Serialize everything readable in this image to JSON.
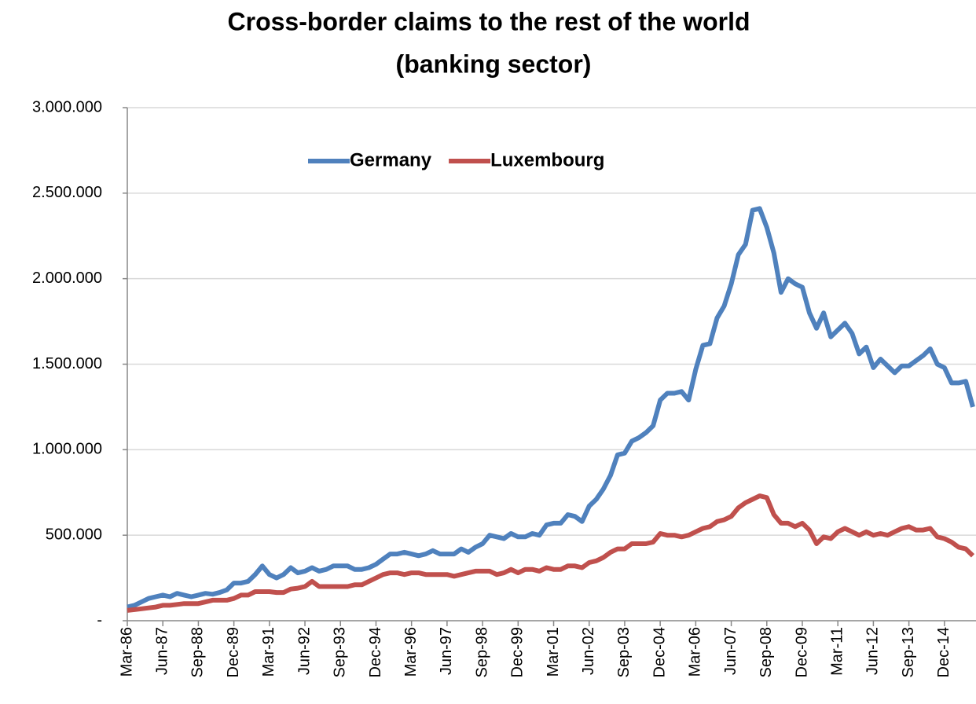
{
  "chart_data": {
    "type": "line",
    "title": [
      "Cross-border claims to the rest of the world",
      "(banking sector)"
    ],
    "categories": [
      "Mar-86",
      null,
      null,
      null,
      null,
      "Jun-87",
      null,
      null,
      null,
      null,
      "Sep-88",
      null,
      null,
      null,
      null,
      "Dec-89",
      null,
      null,
      null,
      null,
      "Mar-91",
      null,
      null,
      null,
      null,
      "Jun-92",
      null,
      null,
      null,
      null,
      "Sep-93",
      null,
      null,
      null,
      null,
      "Dec-94",
      null,
      null,
      null,
      null,
      "Mar-96",
      null,
      null,
      null,
      null,
      "Jun-97",
      null,
      null,
      null,
      null,
      "Sep-98",
      null,
      null,
      null,
      null,
      "Dec-99",
      null,
      null,
      null,
      null,
      "Mar-01",
      null,
      null,
      null,
      null,
      "Jun-02",
      null,
      null,
      null,
      null,
      "Sep-03",
      null,
      null,
      null,
      null,
      "Dec-04",
      null,
      null,
      null,
      null,
      "Mar-06",
      null,
      null,
      null,
      null,
      "Jun-07",
      null,
      null,
      null,
      null,
      "Sep-08",
      null,
      null,
      null,
      null,
      "Dec-09",
      null,
      null,
      null,
      null,
      "Mar-11",
      null,
      null,
      null,
      null,
      "Jun-12",
      null,
      null,
      null,
      null,
      "Sep-13",
      null,
      null,
      null,
      null,
      "Dec-14",
      null,
      null,
      null,
      null
    ],
    "series": [
      {
        "name": "Germany",
        "color": "#4f81bd",
        "values": [
          80000,
          90000,
          110000,
          130000,
          140000,
          150000,
          140000,
          160000,
          150000,
          140000,
          150000,
          160000,
          155000,
          165000,
          180000,
          220000,
          220000,
          230000,
          270000,
          320000,
          270000,
          250000,
          270000,
          310000,
          280000,
          290000,
          310000,
          290000,
          300000,
          320000,
          320000,
          320000,
          300000,
          300000,
          310000,
          330000,
          360000,
          390000,
          390000,
          400000,
          390000,
          380000,
          390000,
          410000,
          390000,
          390000,
          390000,
          420000,
          400000,
          430000,
          450000,
          500000,
          490000,
          480000,
          510000,
          490000,
          490000,
          510000,
          500000,
          560000,
          570000,
          570000,
          620000,
          610000,
          580000,
          670000,
          710000,
          770000,
          850000,
          970000,
          980000,
          1050000,
          1070000,
          1100000,
          1140000,
          1290000,
          1330000,
          1330000,
          1340000,
          1290000,
          1470000,
          1610000,
          1620000,
          1770000,
          1840000,
          1970000,
          2140000,
          2200000,
          2400000,
          2410000,
          2300000,
          2150000,
          1920000,
          2000000,
          1970000,
          1950000,
          1800000,
          1710000,
          1800000,
          1660000,
          1700000,
          1740000,
          1680000,
          1560000,
          1600000,
          1480000,
          1530000,
          1490000,
          1450000,
          1490000,
          1490000,
          1520000,
          1550000,
          1590000,
          1500000,
          1480000,
          1390000,
          1390000,
          1400000,
          1250000
        ]
      },
      {
        "name": "Luxembourg",
        "color": "#c0504d",
        "values": [
          60000,
          65000,
          70000,
          75000,
          80000,
          90000,
          90000,
          95000,
          100000,
          100000,
          100000,
          110000,
          120000,
          120000,
          120000,
          130000,
          150000,
          150000,
          170000,
          170000,
          170000,
          165000,
          165000,
          185000,
          190000,
          200000,
          230000,
          200000,
          200000,
          200000,
          200000,
          200000,
          210000,
          210000,
          230000,
          250000,
          270000,
          280000,
          280000,
          270000,
          280000,
          280000,
          270000,
          270000,
          270000,
          270000,
          260000,
          270000,
          280000,
          290000,
          290000,
          290000,
          270000,
          280000,
          300000,
          280000,
          300000,
          300000,
          290000,
          310000,
          300000,
          300000,
          320000,
          320000,
          310000,
          340000,
          350000,
          370000,
          400000,
          420000,
          420000,
          450000,
          450000,
          450000,
          460000,
          510000,
          500000,
          500000,
          490000,
          500000,
          520000,
          540000,
          550000,
          580000,
          590000,
          610000,
          660000,
          690000,
          710000,
          730000,
          720000,
          620000,
          570000,
          570000,
          550000,
          570000,
          530000,
          450000,
          490000,
          480000,
          520000,
          540000,
          520000,
          500000,
          520000,
          500000,
          510000,
          500000,
          520000,
          540000,
          550000,
          530000,
          530000,
          540000,
          490000,
          480000,
          460000,
          430000,
          420000,
          380000
        ]
      }
    ],
    "ylim": [
      0,
      3000000
    ],
    "yticks": [
      {
        "value": 0,
        "label": "-"
      },
      {
        "value": 500000,
        "label": "500.000"
      },
      {
        "value": 1000000,
        "label": "1.000.000"
      },
      {
        "value": 1500000,
        "label": "1.500.000"
      },
      {
        "value": 2000000,
        "label": "2.000.000"
      },
      {
        "value": 2500000,
        "label": "2.500.000"
      },
      {
        "value": 3000000,
        "label": "3.000.000"
      }
    ],
    "grid": true,
    "legend": "top"
  }
}
